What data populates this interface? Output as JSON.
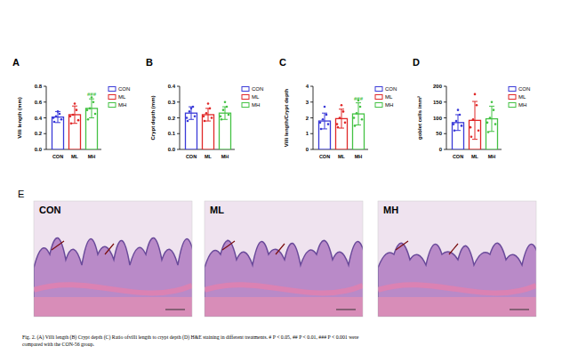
{
  "chart_data": [
    {
      "type": "bar",
      "panel": "A",
      "y_label": "Villi length (mm)",
      "categories": [
        "CON",
        "ML",
        "MH"
      ],
      "values": [
        0.41,
        0.44,
        0.52
      ],
      "errors": [
        0.07,
        0.11,
        0.12
      ],
      "points": [
        [
          0.35,
          0.38,
          0.42,
          0.45,
          0.48,
          0.4
        ],
        [
          0.33,
          0.37,
          0.44,
          0.5,
          0.58,
          0.42
        ],
        [
          0.38,
          0.45,
          0.52,
          0.6,
          0.66,
          0.5
        ]
      ],
      "colors": [
        "#3a3ad8",
        "#e02828",
        "#44c244"
      ],
      "legend": "right",
      "annotations": [
        {
          "category": "MH",
          "text": "###"
        }
      ],
      "ylim": [
        0,
        0.8
      ],
      "yticks": [
        {
          "value": 0,
          "label": "0.0"
        },
        {
          "value": 0.2,
          "label": "0.2"
        },
        {
          "value": 0.4,
          "label": "0.4"
        },
        {
          "value": 0.6,
          "label": "0.6"
        },
        {
          "value": 0.8,
          "label": "0.8"
        }
      ]
    },
    {
      "type": "bar",
      "panel": "B",
      "y_label": "Crypt depth (mm)",
      "categories": [
        "CON",
        "ML",
        "MH"
      ],
      "values": [
        0.23,
        0.22,
        0.23
      ],
      "errors": [
        0.04,
        0.04,
        0.04
      ],
      "points": [
        [
          0.18,
          0.21,
          0.24,
          0.27,
          0.26,
          0.2
        ],
        [
          0.18,
          0.2,
          0.23,
          0.26,
          0.29,
          0.21
        ],
        [
          0.19,
          0.22,
          0.25,
          0.27,
          0.3,
          0.21
        ]
      ],
      "colors": [
        "#3a3ad8",
        "#e02828",
        "#44c244"
      ],
      "legend": "right",
      "annotations": [],
      "ylim": [
        0,
        0.4
      ],
      "yticks": [
        {
          "value": 0,
          "label": "0.0"
        },
        {
          "value": 0.1,
          "label": "0.1"
        },
        {
          "value": 0.2,
          "label": "0.2"
        },
        {
          "value": 0.3,
          "label": "0.3"
        },
        {
          "value": 0.4,
          "label": "0.4"
        }
      ]
    },
    {
      "type": "bar",
      "panel": "C",
      "y_label": "Villi length/Crypt depth",
      "categories": [
        "CON",
        "ML",
        "MH"
      ],
      "values": [
        1.8,
        1.95,
        2.25
      ],
      "errors": [
        0.5,
        0.6,
        0.7
      ],
      "points": [
        [
          1.3,
          1.6,
          1.9,
          2.2,
          2.7,
          1.7
        ],
        [
          1.4,
          1.7,
          2.0,
          2.4,
          2.8,
          1.6
        ],
        [
          1.5,
          1.9,
          2.3,
          2.7,
          3.1,
          2.0
        ]
      ],
      "colors": [
        "#3a3ad8",
        "#e02828",
        "#44c244"
      ],
      "legend": "right",
      "annotations": [
        {
          "category": "MH",
          "text": "###"
        }
      ],
      "ylim": [
        0,
        4
      ],
      "yticks": [
        0,
        1,
        2,
        3,
        4
      ]
    },
    {
      "type": "bar",
      "panel": "D",
      "y_label": "goblet cells /mm²",
      "categories": [
        "CON",
        "ML",
        "MH"
      ],
      "values": [
        85,
        92,
        97
      ],
      "errors": [
        25,
        60,
        40
      ],
      "points": [
        [
          60,
          75,
          90,
          110,
          125,
          80
        ],
        [
          40,
          60,
          95,
          140,
          175,
          70
        ],
        [
          55,
          80,
          100,
          125,
          150,
          85
        ]
      ],
      "colors": [
        "#3a3ad8",
        "#e02828",
        "#44c244"
      ],
      "legend": "right",
      "annotations": [],
      "ylim": [
        0,
        200
      ],
      "yticks": [
        0,
        50,
        100,
        150,
        200
      ]
    }
  ],
  "panel_e": {
    "label": "E",
    "images": [
      "CON",
      "ML",
      "MH"
    ]
  },
  "caption": [
    "Fig. 2. (A) Villi length (B) Crypt depth (C) Ratio ofvilli length to crypt depth (D) H&E staining in different treatments. # P < 0.05, ## P < 0.01, ### P < 0.001 were",
    "compared with the CON-56 group."
  ]
}
